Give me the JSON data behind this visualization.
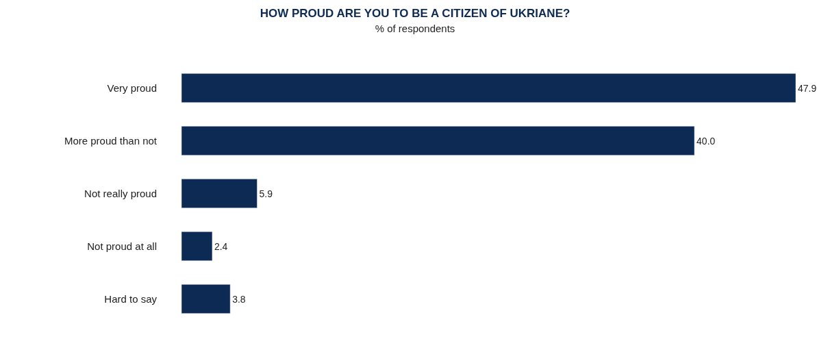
{
  "chart_data": {
    "type": "bar",
    "orientation": "horizontal",
    "title": "HOW PROUD ARE YOU TO BE A CITIZEN OF UKRIANE?",
    "subtitle": "% of respondents",
    "categories": [
      "Very proud",
      "More proud than not",
      "Not really proud",
      "Not proud at all",
      "Hard to say"
    ],
    "values": [
      47.9,
      40.0,
      5.9,
      2.4,
      3.8
    ],
    "value_labels": [
      "47.9",
      "40.0",
      "5.9",
      "2.4",
      "3.8"
    ],
    "color": "#0d2a55",
    "legend": false
  }
}
